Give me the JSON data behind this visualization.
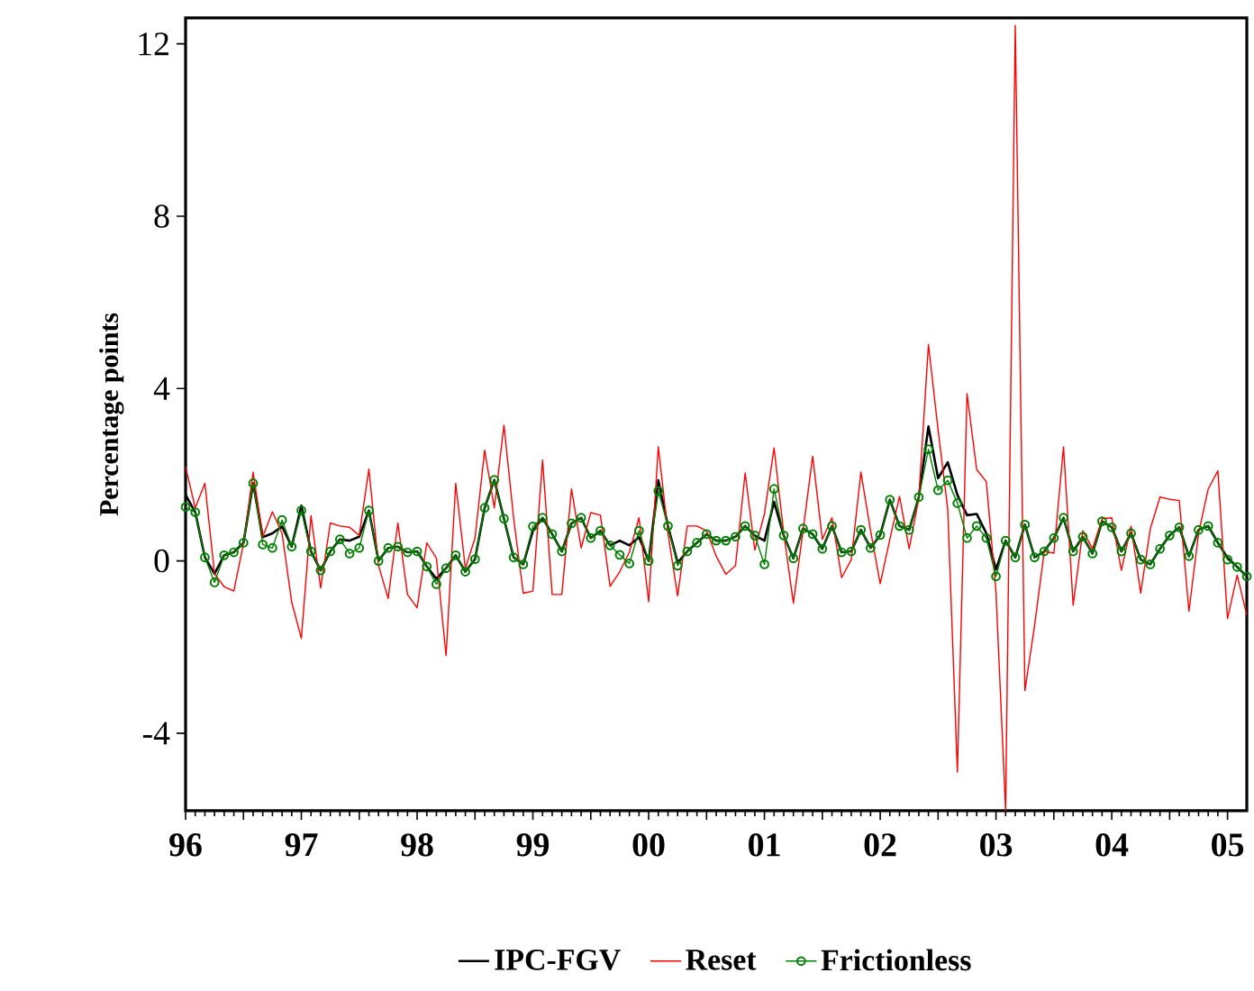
{
  "chart_data": {
    "type": "line",
    "ylabel": "Percentage points",
    "x": [
      "1996-07",
      "1996-08",
      "1996-09",
      "1996-10",
      "1996-11",
      "1996-12",
      "1997-01",
      "1997-02",
      "1997-03",
      "1997-04",
      "1997-05",
      "1997-06",
      "1997-07",
      "1997-08",
      "1997-09",
      "1997-10",
      "1997-11",
      "1997-12",
      "1998-01",
      "1998-02",
      "1998-03",
      "1998-04",
      "1998-05",
      "1998-06",
      "1998-07",
      "1998-08",
      "1998-09",
      "1998-10",
      "1998-11",
      "1998-12",
      "1999-01",
      "1999-02",
      "1999-03",
      "1999-04",
      "1999-05",
      "1999-06",
      "1999-07",
      "1999-08",
      "1999-09",
      "1999-10",
      "1999-11",
      "1999-12",
      "2000-01",
      "2000-02",
      "2000-03",
      "2000-04",
      "2000-05",
      "2000-06",
      "2000-07",
      "2000-08",
      "2000-09",
      "2000-10",
      "2000-11",
      "2000-12",
      "2001-01",
      "2001-02",
      "2001-03",
      "2001-04",
      "2001-05",
      "2001-06",
      "2001-07",
      "2001-08",
      "2001-09",
      "2001-10",
      "2001-11",
      "2001-12",
      "2002-01",
      "2002-02",
      "2002-03",
      "2002-04",
      "2002-05",
      "2002-06",
      "2002-07",
      "2002-08",
      "2002-09",
      "2002-10",
      "2002-11",
      "2002-12",
      "2003-01",
      "2003-02",
      "2003-03",
      "2003-04",
      "2003-05",
      "2003-06",
      "2003-07",
      "2003-08",
      "2003-09",
      "2003-10",
      "2003-11",
      "2003-12",
      "2004-01",
      "2004-02",
      "2004-03",
      "2004-04",
      "2004-05",
      "2004-06",
      "2004-07",
      "2004-08",
      "2004-09",
      "2004-10",
      "2004-11",
      "2004-12",
      "2005-01",
      "2005-02",
      "2005-03",
      "2005-04",
      "2005-05",
      "2005-06",
      "2005-07",
      "2005-08",
      "2005-09"
    ],
    "series": [
      {
        "name": "IPC-FGV",
        "color": "#000000",
        "values": [
          1.53,
          1.13,
          0.08,
          -0.3,
          0.13,
          0.2,
          0.42,
          1.8,
          0.55,
          0.64,
          0.8,
          0.33,
          1.28,
          0.22,
          -0.22,
          0.22,
          0.5,
          0.47,
          0.56,
          1.17,
          0,
          0.3,
          0.33,
          0.2,
          0.22,
          -0.13,
          -0.42,
          -0.17,
          0.13,
          -0.25,
          0.04,
          1.23,
          1.88,
          0.98,
          0.08,
          -0.08,
          0.7,
          1.0,
          0.62,
          0.22,
          0.87,
          1.0,
          0.53,
          0.7,
          0.36,
          0.47,
          0.36,
          0.55,
          0,
          1.87,
          0.81,
          -0.04,
          0.22,
          0.42,
          0.62,
          0.47,
          0.47,
          0.56,
          0.81,
          0.59,
          0.47,
          1.37,
          0.59,
          0.06,
          0.75,
          0.62,
          0.28,
          0.81,
          0.2,
          0.22,
          0.72,
          0.3,
          0.6,
          1.42,
          0.81,
          0.72,
          1.48,
          3.12,
          1.92,
          2.29,
          1.53,
          1.06,
          1.09,
          0.64,
          -0.2,
          0.47,
          0.08,
          0.84,
          0.08,
          0.22,
          0.53,
          1.0,
          0.22,
          0.56,
          0.17,
          0.92,
          0.78,
          0.22,
          0.64,
          0.03,
          -0.08,
          0.28,
          0.59,
          0.78,
          0.11,
          0.72,
          0.81,
          0.42,
          0.07,
          -0.14,
          -0.36
        ]
      },
      {
        "name": "Reset",
        "color": "#ff0000",
        "values": [
          2.18,
          1.23,
          1.8,
          -0.3,
          -0.6,
          -0.7,
          0.4,
          2.06,
          0.56,
          1.14,
          0.64,
          -0.96,
          -1.8,
          1.05,
          -0.63,
          0.88,
          0.81,
          0.78,
          0.59,
          2.13,
          -0.11,
          -0.87,
          0.88,
          -0.78,
          -1.09,
          0.42,
          0.06,
          -2.2,
          1.8,
          -0.17,
          0.53,
          2.57,
          1.23,
          3.15,
          1.0,
          -0.75,
          -0.7,
          2.34,
          -0.78,
          -0.78,
          1.67,
          0.3,
          1.12,
          1.06,
          -0.59,
          -0.25,
          0.2,
          1.0,
          -0.95,
          2.65,
          0.64,
          -0.81,
          0.81,
          0.81,
          0.7,
          0.11,
          -0.31,
          -0.11,
          2.04,
          0.25,
          1.09,
          2.62,
          0.64,
          -0.98,
          0.7,
          2.43,
          0.5,
          1.0,
          -0.39,
          0.03,
          2.06,
          0.7,
          -0.53,
          0.5,
          1.5,
          0.28,
          1.45,
          5.02,
          3.04,
          1.2,
          -4.9,
          3.88,
          2.12,
          1.84,
          -0.72,
          -5.8,
          12.43,
          -3.01,
          -1.5,
          0.22,
          0.18,
          2.65,
          -1.03,
          0.7,
          0.28,
          0.98,
          1.0,
          -0.22,
          0.81,
          -0.75,
          0.75,
          1.48,
          1.43,
          1.4,
          -1.17,
          0.64,
          1.67,
          2.09,
          -1.34,
          -0.33,
          -1.26
        ]
      },
      {
        "name": "Frictionless",
        "color": "#008000",
        "marker": "circle",
        "values": [
          1.25,
          1.13,
          0.08,
          -0.5,
          0.13,
          0.2,
          0.42,
          1.8,
          0.38,
          0.3,
          0.95,
          0.33,
          1.17,
          0.22,
          -0.22,
          0.22,
          0.5,
          0.17,
          0.3,
          1.17,
          0,
          0.3,
          0.33,
          0.2,
          0.22,
          -0.13,
          -0.54,
          -0.17,
          0.13,
          -0.25,
          0.04,
          1.23,
          1.88,
          0.98,
          0.08,
          -0.08,
          0.8,
          1.0,
          0.62,
          0.22,
          0.87,
          1.0,
          0.53,
          0.7,
          0.36,
          0.14,
          -0.06,
          0.7,
          0,
          1.62,
          0.81,
          -0.11,
          0.22,
          0.42,
          0.62,
          0.47,
          0.47,
          0.56,
          0.81,
          0.59,
          -0.08,
          1.67,
          0.59,
          0.06,
          0.75,
          0.62,
          0.28,
          0.81,
          0.2,
          0.22,
          0.72,
          0.3,
          0.6,
          1.42,
          0.81,
          0.72,
          1.48,
          2.59,
          1.64,
          1.87,
          1.34,
          0.53,
          0.81,
          0.53,
          -0.36,
          0.47,
          0.08,
          0.84,
          0.08,
          0.22,
          0.53,
          1.0,
          0.22,
          0.56,
          0.17,
          0.92,
          0.78,
          0.22,
          0.64,
          0.03,
          -0.08,
          0.28,
          0.59,
          0.78,
          0.11,
          0.72,
          0.81,
          0.42,
          0.03,
          -0.14,
          -0.36
        ]
      }
    ],
    "xlim": [
      "1996-07",
      "2005-09"
    ],
    "xticks": [
      {
        "value": "1996-07",
        "label": "96"
      },
      {
        "value": "1997-01",
        "label": null
      },
      {
        "value": "1997-07",
        "label": "97"
      },
      {
        "value": "1998-01",
        "label": null
      },
      {
        "value": "1998-07",
        "label": "98"
      },
      {
        "value": "1999-01",
        "label": null
      },
      {
        "value": "1999-07",
        "label": "99"
      },
      {
        "value": "2000-01",
        "label": null
      },
      {
        "value": "2000-07",
        "label": "00"
      },
      {
        "value": "2001-01",
        "label": null
      },
      {
        "value": "2001-07",
        "label": "01"
      },
      {
        "value": "2002-01",
        "label": null
      },
      {
        "value": "2002-07",
        "label": "02"
      },
      {
        "value": "2003-01",
        "label": null
      },
      {
        "value": "2003-07",
        "label": "03"
      },
      {
        "value": "2004-01",
        "label": null
      },
      {
        "value": "2004-07",
        "label": "04"
      },
      {
        "value": "2005-01",
        "label": null
      },
      {
        "value": "2005-07",
        "label": "05"
      }
    ],
    "ylim": [
      -5.8,
      12.6
    ],
    "yticks": [
      -4,
      0,
      4,
      8,
      12
    ],
    "marker": "none",
    "line_style": "solid",
    "legend": "bottom"
  }
}
